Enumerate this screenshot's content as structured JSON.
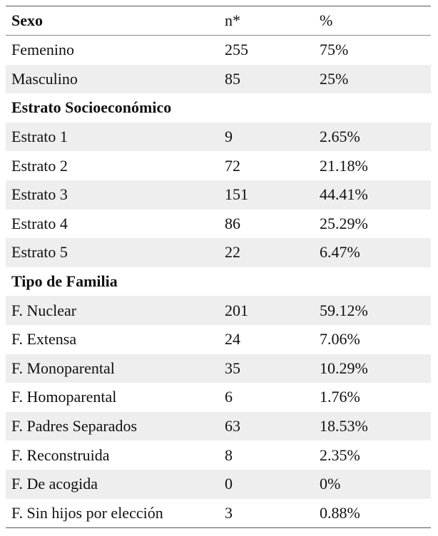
{
  "header": {
    "col1": "Sexo",
    "col2": "n*",
    "col3": "%"
  },
  "rows": [
    {
      "label": "Femenino",
      "n": "255",
      "pct": "75%",
      "section": false,
      "shaded": false
    },
    {
      "label": "Masculino",
      "n": "85",
      "pct": "25%",
      "section": false,
      "shaded": true
    },
    {
      "label": "Estrato Socioeconómico",
      "n": "",
      "pct": "",
      "section": true,
      "shaded": false
    },
    {
      "label": "Estrato 1",
      "n": "9",
      "pct": "2.65%",
      "section": false,
      "shaded": true
    },
    {
      "label": "Estrato 2",
      "n": "72",
      "pct": "21.18%",
      "section": false,
      "shaded": false
    },
    {
      "label": "Estrato 3",
      "n": "151",
      "pct": "44.41%",
      "section": false,
      "shaded": true
    },
    {
      "label": "Estrato 4",
      "n": "86",
      "pct": "25.29%",
      "section": false,
      "shaded": false
    },
    {
      "label": "Estrato 5",
      "n": "22",
      "pct": "6.47%",
      "section": false,
      "shaded": true
    },
    {
      "label": "Tipo de Familia",
      "n": "",
      "pct": "",
      "section": true,
      "shaded": false
    },
    {
      "label": " F. Nuclear",
      "n": "201",
      "pct": "59.12%",
      "section": false,
      "shaded": true
    },
    {
      "label": "F. Extensa",
      "n": "24",
      "pct": "7.06%",
      "section": false,
      "shaded": false
    },
    {
      "label": "F. Monoparental",
      "n": "35",
      "pct": "10.29%",
      "section": false,
      "shaded": true
    },
    {
      "label": "F. Homoparental",
      "n": "6",
      "pct": "1.76%",
      "section": false,
      "shaded": false
    },
    {
      "label": "F. Padres Separados",
      "n": "63",
      "pct": "18.53%",
      "section": false,
      "shaded": true
    },
    {
      "label": "F. Reconstruida",
      "n": "8",
      "pct": "2.35%",
      "section": false,
      "shaded": false
    },
    {
      "label": "F. De acogida",
      "n": "0",
      "pct": "0%",
      "section": false,
      "shaded": true
    },
    {
      "label": "F. Sin hijos por elección",
      "n": "3",
      "pct": "0.88%",
      "section": false,
      "shaded": false
    }
  ]
}
